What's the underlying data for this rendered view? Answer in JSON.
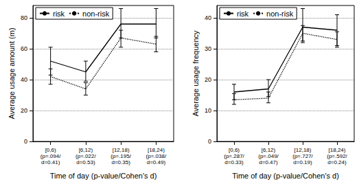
{
  "chart_data": [
    {
      "type": "line",
      "xlabel": "Time of day (p-value/Cohen's d)",
      "ylabel": "Average usage amount (m)",
      "categories": [
        "[0,6)\n(p=.094/\nd=0.41)",
        "[6,12)\n(p=.022/\nd=0.53)",
        "[12,18)\n(p=.195/\nd=0.35)",
        "[18,24)\n(p=.038/\nd=0.49)"
      ],
      "series": [
        {
          "name": "risk",
          "color": "#000000",
          "line_style": "solid",
          "values": [
            52,
            45,
            76,
            76
          ],
          "error": [
            [
              43,
              61
            ],
            [
              39,
              52
            ],
            [
              67,
              86
            ],
            [
              67,
              86
            ]
          ]
        },
        {
          "name": "non-risk",
          "color": "#000000",
          "line_style": "dotted",
          "values": [
            42,
            34,
            67,
            63
          ],
          "error": [
            [
              37,
              47
            ],
            [
              30,
              38
            ],
            [
              61,
              72
            ],
            [
              58,
              68
            ]
          ]
        }
      ],
      "ylim": [
        0,
        88
      ],
      "yticks": [
        0,
        20,
        40,
        60,
        80
      ],
      "grid": true,
      "legend": "upper left"
    },
    {
      "type": "line",
      "xlabel": "Time of day (p-value/Cohen's d)",
      "ylabel": "Average usage frequency",
      "categories": [
        "[0,6)\n(p=.287/\nd=0.33)",
        "[6,12)\n(p=.049/\nd=0.47)",
        "[12,18)\n(p=.727/\nd=0.19)",
        "[18,24)\n(p=.592/\nd=0.24)"
      ],
      "series": [
        {
          "name": "risk",
          "color": "#000000",
          "line_style": "solid",
          "values": [
            16,
            17,
            37,
            36
          ],
          "error": [
            [
              13.5,
              18.5
            ],
            [
              14.5,
              20
            ],
            [
              32,
              43
            ],
            [
              31,
              41
            ]
          ]
        },
        {
          "name": "non-risk",
          "color": "#000000",
          "line_style": "dotted",
          "values": [
            13.5,
            14,
            35,
            33
          ],
          "error": [
            [
              12,
              15.5
            ],
            [
              12.5,
              16
            ],
            [
              32.5,
              37.5
            ],
            [
              30.5,
              35.5
            ]
          ]
        }
      ],
      "ylim": [
        0,
        44
      ],
      "yticks": [
        0,
        10,
        20,
        30,
        40
      ],
      "grid": true,
      "legend": "upper left"
    }
  ]
}
